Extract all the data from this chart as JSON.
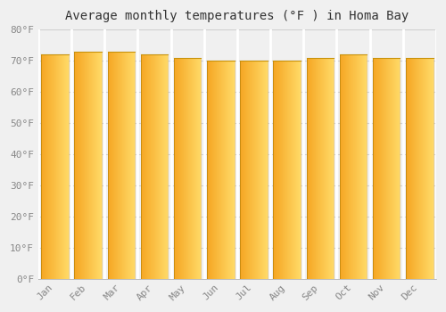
{
  "title": "Average monthly temperatures (°F ) in Homa Bay",
  "months": [
    "Jan",
    "Feb",
    "Mar",
    "Apr",
    "May",
    "Jun",
    "Jul",
    "Aug",
    "Sep",
    "Oct",
    "Nov",
    "Dec"
  ],
  "values": [
    72,
    73,
    73,
    72,
    71,
    70,
    70,
    70,
    71,
    72,
    71,
    71
  ],
  "ylim": [
    0,
    80
  ],
  "yticks": [
    0,
    10,
    20,
    30,
    40,
    50,
    60,
    70,
    80
  ],
  "bar_color_left": "#F5A623",
  "bar_color_right": "#FFD966",
  "bg_color": "#f0f0f0",
  "grid_color": "#d0d0d0",
  "title_fontsize": 10,
  "tick_fontsize": 8,
  "font_family": "monospace",
  "bar_width": 0.82
}
